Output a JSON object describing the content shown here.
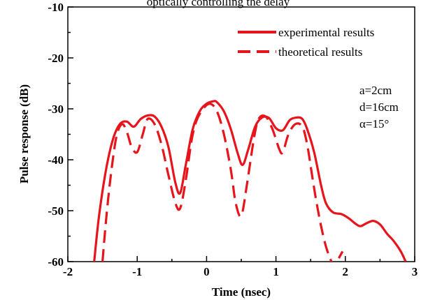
{
  "chart_data": {
    "type": "line",
    "title": "",
    "top_text": "optically controlling the delay",
    "xlabel": "Time (nsec)",
    "ylabel": "Pulse response (dB)",
    "xlim": [
      -2,
      3
    ],
    "ylim": [
      -60,
      -10
    ],
    "xticks": [
      "-2",
      "-1",
      "0",
      "1",
      "2",
      "3"
    ],
    "yticks": [
      "-10",
      "-20",
      "-30",
      "-40",
      "-50",
      "-60"
    ],
    "grid": false,
    "legend_position": "top-right",
    "color": "#e8141c",
    "annotations": [
      "a=2cm",
      "d=16cm",
      "α=15°"
    ],
    "series": [
      {
        "name": "experimental results",
        "style": "solid",
        "x": [
          -1.62,
          -1.55,
          -1.45,
          -1.35,
          -1.25,
          -1.15,
          -1.05,
          -0.95,
          -0.85,
          -0.75,
          -0.65,
          -0.55,
          -0.45,
          -0.38,
          -0.3,
          -0.2,
          -0.1,
          0.0,
          0.1,
          0.15,
          0.25,
          0.35,
          0.45,
          0.52,
          0.6,
          0.7,
          0.8,
          0.9,
          1.0,
          1.1,
          1.2,
          1.3,
          1.38,
          1.45,
          1.55,
          1.65,
          1.72,
          1.82,
          1.95,
          2.05,
          2.2,
          2.3,
          2.4,
          2.5,
          2.6,
          2.7,
          2.8,
          2.87
        ],
        "y": [
          -60,
          -51,
          -42,
          -36,
          -33,
          -32.5,
          -33.5,
          -32,
          -31.3,
          -31.5,
          -33.5,
          -37.5,
          -44.5,
          -46.5,
          -41,
          -34,
          -30.5,
          -29,
          -28.5,
          -28.7,
          -30.5,
          -34,
          -38.8,
          -41,
          -38,
          -33.5,
          -31.7,
          -31.8,
          -33.8,
          -34.2,
          -32.2,
          -31.7,
          -32,
          -34,
          -38.5,
          -45,
          -48.5,
          -50.3,
          -50.7,
          -51.5,
          -53,
          -52.5,
          -52,
          -52.7,
          -54.5,
          -56,
          -58,
          -60
        ]
      },
      {
        "name": "theoretical results",
        "style": "dashed",
        "x": [
          -1.5,
          -1.45,
          -1.38,
          -1.3,
          -1.22,
          -1.15,
          -1.08,
          -1.0,
          -0.92,
          -0.85,
          -0.75,
          -0.65,
          -0.55,
          -0.45,
          -0.38,
          -0.3,
          -0.22,
          -0.15,
          -0.05,
          0.05,
          0.15,
          0.25,
          0.35,
          0.42,
          0.5,
          0.58,
          0.68,
          0.75,
          0.85,
          0.95,
          1.05,
          1.1,
          1.18,
          1.28,
          1.38,
          1.45,
          1.52,
          1.58,
          1.65,
          1.72,
          1.8,
          1.85,
          1.9,
          1.96
        ],
        "y": [
          -60,
          -52,
          -43,
          -35.5,
          -33,
          -34.5,
          -37.5,
          -38.5,
          -35,
          -32,
          -33,
          -37,
          -43,
          -48.5,
          -49.5,
          -44,
          -36.5,
          -32.5,
          -30,
          -29,
          -30.5,
          -35,
          -42,
          -48.5,
          -51,
          -45,
          -36,
          -32,
          -31.5,
          -34,
          -38,
          -38.5,
          -35,
          -33,
          -33.5,
          -37,
          -43,
          -48,
          -53,
          -57,
          -60,
          -61,
          -59.5,
          -58
        ]
      }
    ]
  }
}
